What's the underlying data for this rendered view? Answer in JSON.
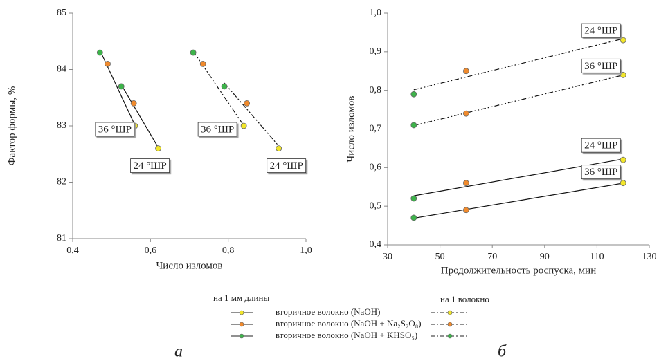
{
  "chart_data": [
    {
      "type": "scatter",
      "xlabel": "Число изломов",
      "ylabel": "Фактор формы, %",
      "caption": "а",
      "xlim": [
        0.4,
        1.0
      ],
      "ylim": [
        81,
        85
      ],
      "xticks": [
        {
          "value": 0.4,
          "label": "0,4"
        },
        {
          "value": 0.6,
          "label": "0,6"
        },
        {
          "value": 0.8,
          "label": "0,8"
        },
        {
          "value": 1.0,
          "label": "1,0"
        }
      ],
      "yticks": [
        81,
        82,
        83,
        84,
        85
      ],
      "series": [
        {
          "label": "36 °ШР",
          "line": "solid",
          "x": [
            0.47,
            0.49,
            0.56
          ],
          "y": [
            84.3,
            84.1,
            83.0
          ],
          "colors": [
            "#3db34a",
            "#f08a2c",
            "#f2e62a"
          ]
        },
        {
          "label": "24 °ШР",
          "line": "solid",
          "x": [
            0.525,
            0.557,
            0.62
          ],
          "y": [
            83.7,
            83.4,
            82.6
          ],
          "colors": [
            "#3db34a",
            "#f08a2c",
            "#f2e62a"
          ]
        },
        {
          "label": "36 °ШР",
          "line": "dashdot",
          "x": [
            0.71,
            0.735,
            0.84
          ],
          "y": [
            84.3,
            84.1,
            83.0
          ],
          "colors": [
            "#3db34a",
            "#f08a2c",
            "#f2e62a"
          ]
        },
        {
          "label": "24 °ШР",
          "line": "dashdot",
          "x": [
            0.79,
            0.848,
            0.93
          ],
          "y": [
            83.7,
            83.4,
            82.6
          ],
          "colors": [
            "#3db34a",
            "#f08a2c",
            "#f2e62a"
          ]
        }
      ]
    },
    {
      "type": "scatter",
      "xlabel": "Продолжительность роспуска, мин",
      "ylabel": "Число изломов",
      "caption": "б",
      "xlim": [
        30,
        130
      ],
      "ylim": [
        0.4,
        1.0
      ],
      "xticks": [
        30,
        50,
        70,
        90,
        110,
        130
      ],
      "yticks": [
        {
          "value": 0.4,
          "label": "0,4"
        },
        {
          "value": 0.5,
          "label": "0,5"
        },
        {
          "value": 0.6,
          "label": "0,6"
        },
        {
          "value": 0.7,
          "label": "0,7"
        },
        {
          "value": 0.8,
          "label": "0,8"
        },
        {
          "value": 0.9,
          "label": "0,9"
        },
        {
          "value": 1.0,
          "label": "1,0"
        }
      ],
      "series": [
        {
          "label": "24 °ШР",
          "line": "dashdot",
          "x": [
            40,
            60,
            120
          ],
          "y": [
            0.79,
            0.85,
            0.93
          ],
          "colors": [
            "#3db34a",
            "#f08a2c",
            "#f2e62a"
          ]
        },
        {
          "label": "36 °ШР",
          "line": "dashdot",
          "x": [
            40,
            60,
            120
          ],
          "y": [
            0.71,
            0.74,
            0.84
          ],
          "colors": [
            "#3db34a",
            "#f08a2c",
            "#f2e62a"
          ]
        },
        {
          "label": "24 °ШР",
          "line": "solid",
          "x": [
            40,
            60,
            120
          ],
          "y": [
            0.52,
            0.56,
            0.62
          ],
          "colors": [
            "#3db34a",
            "#f08a2c",
            "#f2e62a"
          ]
        },
        {
          "label": "36 °ШР",
          "line": "solid",
          "x": [
            40,
            60,
            120
          ],
          "y": [
            0.47,
            0.49,
            0.56
          ],
          "colors": [
            "#3db34a",
            "#f08a2c",
            "#f2e62a"
          ]
        }
      ]
    }
  ],
  "legend": {
    "headers": [
      "на 1 мм длины",
      "на 1 волокно"
    ],
    "items": [
      {
        "name": "вторичное волокно (NaOH)",
        "color": "#f2e62a"
      },
      {
        "name": "вторичное волокно (NaOH + Na₂S₂O₈)",
        "color": "#f08a2c"
      },
      {
        "name": "вторичное волокно (NaOH + KHSO₅)",
        "color": "#3db34a"
      }
    ]
  }
}
